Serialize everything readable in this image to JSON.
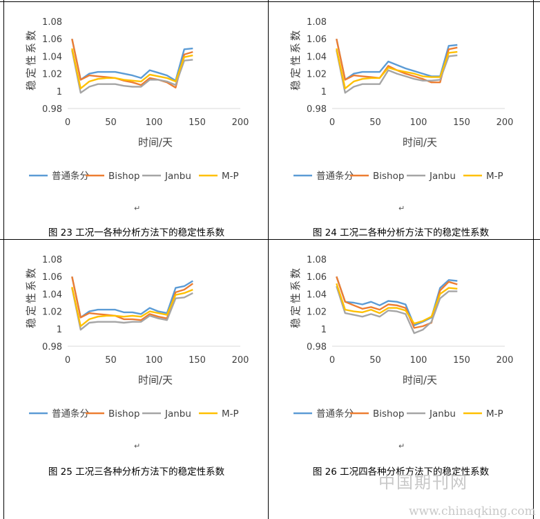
{
  "watermark": {
    "cn": "中国期刊网",
    "url": "www.chinaqking.com"
  },
  "legend_labels": [
    "普通条分",
    "Bishop",
    "Janbu",
    "M-P"
  ],
  "series_colors": [
    "#5b9bd5",
    "#ed7d31",
    "#a5a5a5",
    "#ffc000"
  ],
  "chart_data": [
    {
      "type": "line",
      "caption": "图 23  工况一各种分析方法下的稳定性系数",
      "xlabel": "时间/天",
      "ylabel": "稳定性系数",
      "xlim": [
        0,
        200
      ],
      "ylim": [
        0.98,
        1.08
      ],
      "xticks": [
        "0",
        "50",
        "100",
        "150",
        "200"
      ],
      "yticks": [
        "0.98",
        "1",
        "1.02",
        "1.04",
        "1.06",
        "1.08"
      ],
      "series": [
        {
          "name": "普通条分",
          "x": [
            5,
            15,
            25,
            35,
            45,
            55,
            65,
            75,
            85,
            95,
            105,
            115,
            125,
            135,
            145
          ],
          "y": [
            1.06,
            1.013,
            1.02,
            1.022,
            1.022,
            1.022,
            1.02,
            1.018,
            1.015,
            1.024,
            1.021,
            1.018,
            1.012,
            1.048,
            1.049
          ]
        },
        {
          "name": "Bishop",
          "x": [
            5,
            15,
            25,
            35,
            45,
            55,
            65,
            75,
            85,
            95,
            105,
            115,
            125,
            135,
            145
          ],
          "y": [
            1.06,
            1.013,
            1.018,
            1.017,
            1.016,
            1.015,
            1.012,
            1.01,
            1.007,
            1.015,
            1.013,
            1.01,
            1.004,
            1.042,
            1.045
          ]
        },
        {
          "name": "Janbu",
          "x": [
            5,
            15,
            25,
            35,
            45,
            55,
            65,
            75,
            85,
            95,
            105,
            115,
            125,
            135,
            145
          ],
          "y": [
            1.047,
            0.998,
            1.005,
            1.008,
            1.008,
            1.008,
            1.006,
            1.005,
            1.005,
            1.013,
            1.013,
            1.011,
            1.007,
            1.035,
            1.036
          ]
        },
        {
          "name": "M-P",
          "x": [
            5,
            15,
            25,
            35,
            45,
            55,
            65,
            75,
            85,
            95,
            105,
            115,
            125,
            135,
            145
          ],
          "y": [
            1.049,
            1.003,
            1.011,
            1.014,
            1.015,
            1.015,
            1.013,
            1.012,
            1.011,
            1.019,
            1.017,
            1.015,
            1.011,
            1.039,
            1.041
          ]
        }
      ]
    },
    {
      "type": "line",
      "caption": "图 24  工况二各种分析方法下的稳定性系数",
      "xlabel": "时间/天",
      "ylabel": "稳定性系数",
      "xlim": [
        0,
        200
      ],
      "ylim": [
        0.98,
        1.08
      ],
      "xticks": [
        "0",
        "50",
        "100",
        "150",
        "200"
      ],
      "yticks": [
        "0.98",
        "1",
        "1.02",
        "1.04",
        "1.06",
        "1.08"
      ],
      "series": [
        {
          "name": "普通条分",
          "x": [
            5,
            15,
            25,
            35,
            45,
            55,
            65,
            75,
            85,
            95,
            105,
            115,
            125,
            135,
            145
          ],
          "y": [
            1.06,
            1.013,
            1.02,
            1.022,
            1.022,
            1.022,
            1.034,
            1.03,
            1.026,
            1.023,
            1.02,
            1.017,
            1.017,
            1.052,
            1.053
          ]
        },
        {
          "name": "Bishop",
          "x": [
            5,
            15,
            25,
            35,
            45,
            55,
            65,
            75,
            85,
            95,
            105,
            115,
            125,
            135,
            145
          ],
          "y": [
            1.06,
            1.013,
            1.018,
            1.017,
            1.016,
            1.015,
            1.029,
            1.024,
            1.02,
            1.017,
            1.014,
            1.01,
            1.01,
            1.048,
            1.05
          ]
        },
        {
          "name": "Janbu",
          "x": [
            5,
            15,
            25,
            35,
            45,
            55,
            65,
            75,
            85,
            95,
            105,
            115,
            125,
            135,
            145
          ],
          "y": [
            1.047,
            0.998,
            1.005,
            1.008,
            1.008,
            1.008,
            1.024,
            1.02,
            1.017,
            1.014,
            1.012,
            1.012,
            1.013,
            1.04,
            1.041
          ]
        },
        {
          "name": "M-P",
          "x": [
            5,
            15,
            25,
            35,
            45,
            55,
            65,
            75,
            85,
            95,
            105,
            115,
            125,
            135,
            145
          ],
          "y": [
            1.049,
            1.003,
            1.011,
            1.014,
            1.015,
            1.015,
            1.027,
            1.024,
            1.022,
            1.02,
            1.017,
            1.016,
            1.016,
            1.044,
            1.045
          ]
        }
      ]
    },
    {
      "type": "line",
      "caption": "图 25  工况三各种分析方法下的稳定性系数",
      "xlabel": "时间/天",
      "ylabel": "稳定性系数",
      "xlim": [
        0,
        200
      ],
      "ylim": [
        0.98,
        1.08
      ],
      "xticks": [
        "0",
        "50",
        "100",
        "150",
        "200"
      ],
      "yticks": [
        "0.98",
        "1",
        "1.02",
        "1.04",
        "1.06",
        "1.08"
      ],
      "series": [
        {
          "name": "普通条分",
          "x": [
            5,
            15,
            25,
            35,
            45,
            55,
            65,
            75,
            85,
            95,
            105,
            115,
            125,
            135,
            145
          ],
          "y": [
            1.06,
            1.013,
            1.02,
            1.022,
            1.022,
            1.022,
            1.019,
            1.019,
            1.017,
            1.024,
            1.02,
            1.018,
            1.047,
            1.049,
            1.055
          ]
        },
        {
          "name": "Bishop",
          "x": [
            5,
            15,
            25,
            35,
            45,
            55,
            65,
            75,
            85,
            95,
            105,
            115,
            125,
            135,
            145
          ],
          "y": [
            1.06,
            1.013,
            1.018,
            1.017,
            1.016,
            1.015,
            1.011,
            1.011,
            1.01,
            1.017,
            1.014,
            1.012,
            1.042,
            1.045,
            1.052
          ]
        },
        {
          "name": "Janbu",
          "x": [
            5,
            15,
            25,
            35,
            45,
            55,
            65,
            75,
            85,
            95,
            105,
            115,
            125,
            135,
            145
          ],
          "y": [
            1.047,
            0.999,
            1.007,
            1.008,
            1.008,
            1.008,
            1.007,
            1.008,
            1.008,
            1.015,
            1.012,
            1.01,
            1.035,
            1.036,
            1.041
          ]
        },
        {
          "name": "M-P",
          "x": [
            5,
            15,
            25,
            35,
            45,
            55,
            65,
            75,
            85,
            95,
            105,
            115,
            125,
            135,
            145
          ],
          "y": [
            1.048,
            1.003,
            1.011,
            1.014,
            1.015,
            1.015,
            1.014,
            1.015,
            1.014,
            1.02,
            1.018,
            1.016,
            1.039,
            1.041,
            1.045
          ]
        }
      ]
    },
    {
      "type": "line",
      "caption": "图 26  工况四各种分析方法下的稳定性系数",
      "xlabel": "时间/天",
      "ylabel": "稳定性系数",
      "xlim": [
        0,
        200
      ],
      "ylim": [
        0.98,
        1.08
      ],
      "xticks": [
        "0",
        "50",
        "100",
        "150",
        "200"
      ],
      "yticks": [
        "0.98",
        "1",
        "1.02",
        "1.04",
        "1.06",
        "1.08"
      ],
      "series": [
        {
          "name": "普通条分",
          "x": [
            5,
            15,
            25,
            35,
            45,
            55,
            65,
            75,
            85,
            95,
            105,
            115,
            125,
            135,
            145
          ],
          "y": [
            1.06,
            1.031,
            1.03,
            1.028,
            1.031,
            1.027,
            1.032,
            1.031,
            1.028,
            1.004,
            1.008,
            1.013,
            1.047,
            1.056,
            1.055
          ]
        },
        {
          "name": "Bishop",
          "x": [
            5,
            15,
            25,
            35,
            45,
            55,
            65,
            75,
            85,
            95,
            105,
            115,
            125,
            135,
            145
          ],
          "y": [
            1.06,
            1.031,
            1.027,
            1.023,
            1.025,
            1.022,
            1.028,
            1.027,
            1.024,
            1.001,
            1.003,
            1.007,
            1.044,
            1.054,
            1.051
          ]
        },
        {
          "name": "Janbu",
          "x": [
            5,
            15,
            25,
            35,
            45,
            55,
            65,
            75,
            85,
            95,
            105,
            115,
            125,
            135,
            145
          ],
          "y": [
            1.049,
            1.018,
            1.016,
            1.014,
            1.017,
            1.014,
            1.021,
            1.02,
            1.017,
            0.995,
            0.999,
            1.008,
            1.035,
            1.043,
            1.043
          ]
        },
        {
          "name": "M-P",
          "x": [
            5,
            15,
            25,
            35,
            45,
            55,
            65,
            75,
            85,
            95,
            105,
            115,
            125,
            135,
            145
          ],
          "y": [
            1.052,
            1.022,
            1.02,
            1.019,
            1.022,
            1.018,
            1.024,
            1.024,
            1.021,
            1.006,
            1.009,
            1.014,
            1.04,
            1.047,
            1.046
          ]
        }
      ]
    }
  ]
}
